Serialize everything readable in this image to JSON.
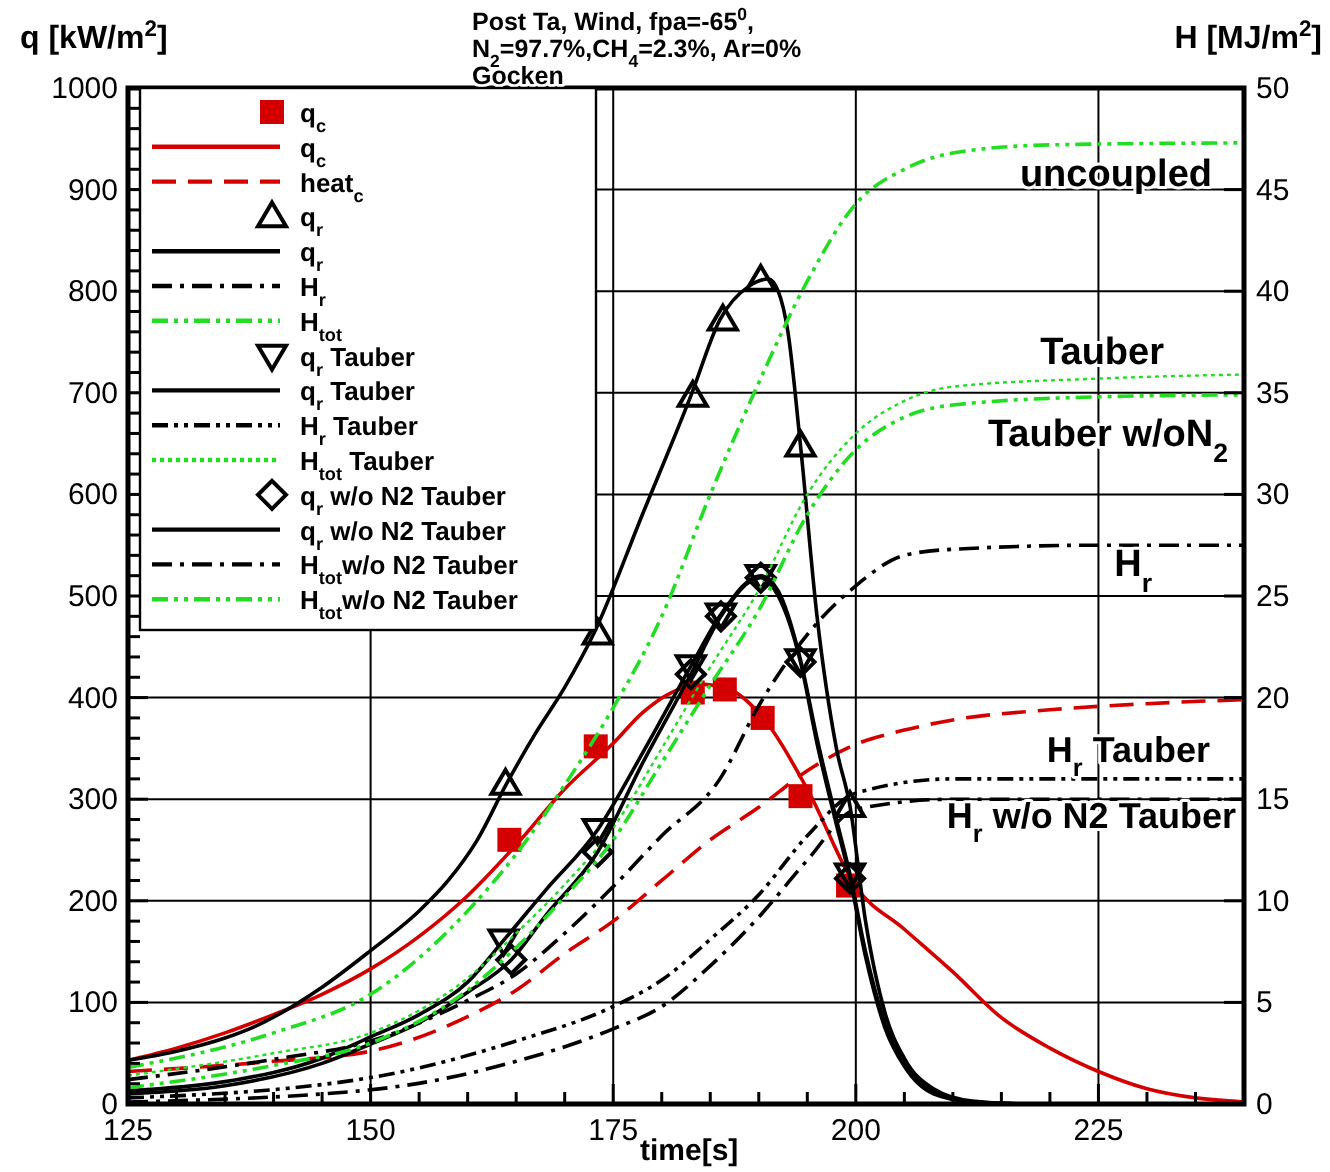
{
  "chart_data": {
    "type": "line",
    "title": "Post Ta, Wind,  fpa=-65$^{0}$,",
    "subtitle": "N$_{2}$=97.7%,CH$_{4}$=2.3%, Ar=0%",
    "xlabel": "time[s]",
    "ylabel": "q [kW/m$^{2}$]",
    "y2label": "H [MJ/m$^{2}$]",
    "annotations": [
      "Gocken",
      "uncoupled",
      "Tauber",
      "Tauber w/oN$_{2}$",
      "H$_{r}$",
      "H$_{r}$ Tauber",
      "H$_{r}$ w/o N2 Tauber"
    ],
    "xlim": [
      125,
      240
    ],
    "ylim": [
      0,
      1000
    ],
    "y2lim": [
      0,
      50
    ],
    "xticks": [
      125,
      {
        "value": 130,
        "label": null
      },
      {
        "value": 135,
        "label": null
      },
      {
        "value": 140,
        "label": null
      },
      {
        "value": 145,
        "label": null
      },
      150,
      {
        "value": 155,
        "label": null
      },
      {
        "value": 160,
        "label": null
      },
      {
        "value": 165,
        "label": null
      },
      {
        "value": 170,
        "label": null
      },
      175,
      {
        "value": 180,
        "label": null
      },
      {
        "value": 185,
        "label": null
      },
      {
        "value": 190,
        "label": null
      },
      {
        "value": 195,
        "label": null
      },
      200,
      {
        "value": 205,
        "label": null
      },
      {
        "value": 210,
        "label": null
      },
      {
        "value": 215,
        "label": null
      },
      {
        "value": 220,
        "label": null
      },
      225,
      {
        "value": 230,
        "label": null
      },
      {
        "value": 235,
        "label": null
      }
    ],
    "yticks": [
      0,
      {
        "value": 20,
        "label": null
      },
      {
        "value": 40,
        "label": null
      },
      {
        "value": 60,
        "label": null
      },
      {
        "value": 80,
        "label": null
      },
      100,
      {
        "value": 120,
        "label": null
      },
      {
        "value": 140,
        "label": null
      },
      {
        "value": 160,
        "label": null
      },
      {
        "value": 180,
        "label": null
      },
      200,
      {
        "value": 220,
        "label": null
      },
      {
        "value": 240,
        "label": null
      },
      {
        "value": 260,
        "label": null
      },
      {
        "value": 280,
        "label": null
      },
      300,
      {
        "value": 320,
        "label": null
      },
      {
        "value": 340,
        "label": null
      },
      {
        "value": 360,
        "label": null
      },
      {
        "value": 380,
        "label": null
      },
      400,
      {
        "value": 420,
        "label": null
      },
      {
        "value": 440,
        "label": null
      },
      {
        "value": 460,
        "label": null
      },
      {
        "value": 480,
        "label": null
      },
      500,
      {
        "value": 520,
        "label": null
      },
      {
        "value": 540,
        "label": null
      },
      {
        "value": 560,
        "label": null
      },
      {
        "value": 580,
        "label": null
      },
      600,
      {
        "value": 620,
        "label": null
      },
      {
        "value": 640,
        "label": null
      },
      {
        "value": 660,
        "label": null
      },
      {
        "value": 680,
        "label": null
      },
      700,
      {
        "value": 720,
        "label": null
      },
      {
        "value": 740,
        "label": null
      },
      {
        "value": 760,
        "label": null
      },
      {
        "value": 780,
        "label": null
      },
      800,
      {
        "value": 820,
        "label": null
      },
      {
        "value": 840,
        "label": null
      },
      {
        "value": 860,
        "label": null
      },
      {
        "value": 880,
        "label": null
      },
      900,
      {
        "value": 920,
        "label": null
      },
      {
        "value": 940,
        "label": null
      },
      {
        "value": 960,
        "label": null
      },
      {
        "value": 980,
        "label": null
      },
      1000
    ],
    "y2ticks": [
      0,
      5,
      10,
      15,
      20,
      25,
      30,
      35,
      40,
      45,
      50
    ],
    "grid": true,
    "legend": "top left",
    "series": [
      {
        "type": "scatter",
        "name": "q$_{c}$",
        "color": "#d40000",
        "marker": "square",
        "x": [
          164.3,
          173.2,
          183.2,
          186.5,
          190.4,
          194.3,
          199.2
        ],
        "values": [
          260,
          352,
          405,
          408,
          380,
          303,
          215
        ]
      },
      {
        "name": "q$_{c}$",
        "color": "#d40000",
        "line_style": "solid",
        "x": [
          125,
          130,
          135,
          140,
          145,
          150,
          155,
          160,
          165,
          170,
          175,
          178,
          181,
          184,
          187,
          190,
          195,
          200,
          205,
          210,
          215,
          220,
          225,
          230,
          235,
          240
        ],
        "values": [
          43,
          55,
          70,
          88,
          108,
          133,
          165,
          205,
          255,
          310,
          355,
          385,
          405,
          413,
          408,
          385,
          310,
          214,
          172,
          130,
          85,
          55,
          32,
          15,
          6,
          2
        ]
      },
      {
        "name": "heat$_{c}$",
        "color": "#d40000",
        "line_style": "dashed",
        "axis": "y2",
        "x": [
          125,
          140,
          150,
          160,
          165,
          170,
          175,
          180,
          185,
          190,
          195,
          200,
          205,
          210,
          220,
          230,
          240
        ],
        "values": [
          1.6,
          2.1,
          2.6,
          4.3,
          5.6,
          7.4,
          9,
          11,
          13,
          14.6,
          16.4,
          17.7,
          18.4,
          18.9,
          19.4,
          19.7,
          19.9
        ]
      },
      {
        "type": "scatter",
        "name": "q$_{r}$",
        "color": "#000000",
        "marker": "triangle",
        "x": [
          163.9,
          173.4,
          183.2,
          186.3,
          190.2,
          194.3,
          199.4
        ],
        "values": [
          315,
          463,
          697,
          772,
          811,
          648,
          293
        ]
      },
      {
        "name": "q$_{r}$",
        "color": "#000000",
        "line_style": "solid",
        "x": [
          125,
          130,
          135,
          138,
          145,
          150,
          155,
          158,
          161,
          164,
          167,
          170,
          173,
          178,
          183,
          186,
          189,
          191,
          192,
          193,
          194.3,
          196,
          198,
          199.4,
          201,
          203,
          205,
          208,
          212,
          218,
          240
        ],
        "values": [
          43,
          52,
          65,
          76,
          115,
          151,
          190,
          220,
          260,
          315,
          365,
          410,
          463,
          580,
          697,
          772,
          805,
          812,
          800,
          760,
          648,
          480,
          350,
          293,
          180,
          90,
          45,
          15,
          3,
          0,
          0
        ]
      },
      {
        "name": "H$_{r}$",
        "color": "#000000",
        "line_style": "dashdot",
        "axis": "y2",
        "x": [
          125,
          140,
          150,
          160,
          165,
          170,
          175,
          180,
          186,
          190,
          195,
          200,
          205,
          210,
          225,
          240
        ],
        "values": [
          1.2,
          2.2,
          3.1,
          5.1,
          6.4,
          8.4,
          10.7,
          13.2,
          16,
          19.6,
          23.1,
          25.5,
          27,
          27.3,
          27.5,
          27.5
        ]
      },
      {
        "name": "H$_{tot}$",
        "color": "#22dd22",
        "line_style": "dashdotdot",
        "axis": "y2",
        "x": [
          125,
          140,
          150,
          160,
          165,
          170,
          175,
          180,
          185,
          190,
          195,
          200,
          205,
          210,
          220,
          240
        ],
        "values": [
          1.8,
          3.5,
          5.4,
          9.5,
          12.3,
          15.7,
          19.5,
          24,
          30,
          35.5,
          40.5,
          44.3,
          46,
          46.8,
          47.2,
          47.3
        ]
      },
      {
        "type": "scatter",
        "name": "q$_{r}$ Tauber",
        "color": "#000000",
        "marker": "triangle-down",
        "x": [
          163.7,
          173.4,
          183,
          186.1,
          190.2,
          194.3,
          199.4
        ],
        "values": [
          161,
          270,
          431,
          482,
          520,
          437,
          226
        ]
      },
      {
        "name": "q$_{r}$ Tauber",
        "color": "#000000",
        "line_style": "solid",
        "x": [
          125,
          135,
          145,
          150,
          155,
          160,
          163.7,
          168,
          173.4,
          178,
          183,
          186.1,
          190.2,
          192,
          194.3,
          196,
          198,
          199.4,
          201,
          203,
          205,
          208,
          212,
          216
        ],
        "values": [
          13,
          22,
          45,
          66,
          88,
          120,
          161,
          210,
          270,
          345,
          431,
          482,
          520,
          505,
          437,
          360,
          280,
          226,
          150,
          80,
          40,
          12,
          2,
          0.5
        ]
      },
      {
        "name": "H$_{r}$ Tauber",
        "color": "#000000",
        "line_style": "dashdotdot",
        "axis": "y2",
        "x": [
          125,
          150,
          165,
          175,
          180,
          185,
          190,
          195,
          200,
          210,
          225,
          240
        ],
        "values": [
          0.3,
          1.3,
          3.1,
          4.8,
          6.1,
          8.1,
          10.3,
          13.2,
          15.3,
          16,
          16,
          16
        ]
      },
      {
        "name": "H$_{tot}$ Tauber",
        "color": "#22dd22",
        "line_style": "dotted",
        "axis": "y2",
        "x": [
          125,
          140,
          150,
          160,
          165,
          170,
          175,
          180,
          185,
          190,
          195,
          200,
          205,
          210,
          225,
          240
        ],
        "values": [
          1.4,
          2.5,
          3.5,
          6.2,
          8.4,
          10.8,
          13.6,
          17.5,
          21.5,
          25.3,
          30,
          33,
          34.6,
          35.3,
          35.7,
          35.9
        ]
      },
      {
        "type": "scatter",
        "name": "q$_{r}$ w/o N2  Tauber",
        "color": "#000000",
        "marker": "diamond",
        "x": [
          164.5,
          173.4,
          183,
          186.1,
          190.2,
          194.3,
          199.4
        ],
        "values": [
          142,
          248,
          423,
          480,
          518,
          435,
          222
        ]
      },
      {
        "name": "q$_{r}$ w/o N2  Tauber",
        "color": "#000000",
        "line_style": "solid",
        "x": [
          125,
          135,
          145,
          150,
          155,
          160,
          164.5,
          168,
          173.4,
          178,
          183,
          186.1,
          190.2,
          192,
          194.3,
          196,
          198,
          199.4,
          201,
          203,
          205,
          208,
          212,
          218,
          240
        ],
        "values": [
          10,
          18,
          40,
          59,
          80,
          110,
          142,
          185,
          248,
          335,
          423,
          480,
          518,
          500,
          435,
          355,
          275,
          222,
          145,
          75,
          37,
          10,
          2,
          0,
          0
        ]
      },
      {
        "name": "H$_{tot}$w/o N2  Tauber",
        "color": "#000000",
        "line_style": "dashdot",
        "axis": "y2",
        "x": [
          125,
          150,
          165,
          175,
          180,
          185,
          190,
          195,
          200,
          210,
          225,
          240
        ],
        "values": [
          0.1,
          0.7,
          2.1,
          3.7,
          4.8,
          6.8,
          9.2,
          12,
          14.5,
          15,
          15,
          15
        ]
      },
      {
        "name": "H$_{tot}$w/o N2  Tauber",
        "color": "#22dd22",
        "line_style": "dashdotdot",
        "axis": "y2",
        "x": [
          125,
          140,
          150,
          160,
          165,
          170,
          175,
          180,
          185,
          190,
          195,
          200,
          205,
          210,
          225,
          240
        ],
        "values": [
          0.8,
          1.9,
          3,
          5.6,
          7.7,
          10.2,
          13,
          16.8,
          20.6,
          24.3,
          29,
          32.2,
          33.8,
          34.4,
          34.8,
          34.9
        ]
      }
    ]
  }
}
